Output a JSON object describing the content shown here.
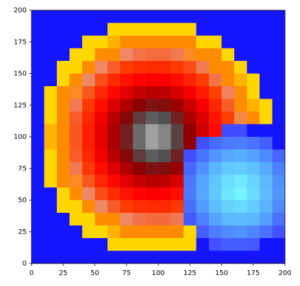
{
  "chart_data": {
    "type": "heatmap",
    "xlim": [
      0,
      200
    ],
    "ylim": [
      0,
      200
    ],
    "xticks": [
      0,
      25,
      50,
      75,
      100,
      125,
      150,
      175,
      200
    ],
    "yticks": [
      0,
      25,
      50,
      75,
      100,
      125,
      150,
      175,
      200
    ],
    "colormap": [
      [
        -100,
        "#78ffff"
      ],
      [
        -50,
        "#58b0ff"
      ],
      [
        -10,
        "#4048ff"
      ],
      [
        -1,
        "#3a3aff"
      ],
      [
        0,
        "#1414ff"
      ],
      [
        0.5,
        "#ffd700"
      ],
      [
        10,
        "#ffd700"
      ],
      [
        12,
        "#ff8c00"
      ],
      [
        22,
        "#ff8c00"
      ],
      [
        25,
        "#ee8866"
      ],
      [
        35,
        "#ff4000"
      ],
      [
        50,
        "#ff0000"
      ],
      [
        70,
        "#8b0000"
      ],
      [
        82,
        "#505050"
      ],
      [
        100,
        "#c8c8c8"
      ]
    ],
    "z": [
      [
        0,
        0,
        0,
        0,
        0,
        0,
        0,
        0,
        0,
        0,
        0,
        0,
        0,
        0,
        0,
        0,
        0,
        0,
        0,
        0
      ],
      [
        0,
        0,
        0,
        0,
        0,
        0,
        1,
        5,
        7,
        8,
        7,
        6,
        3,
        0,
        0,
        0,
        0,
        0,
        0,
        0
      ],
      [
        0,
        0,
        0,
        0,
        1,
        7,
        11,
        15,
        17,
        18,
        18,
        16,
        13,
        9,
        3,
        0,
        0,
        0,
        0,
        0
      ],
      [
        0,
        0,
        0,
        2,
        10,
        16,
        21,
        25,
        28,
        29,
        29,
        27,
        23,
        18,
        12,
        5,
        0,
        0,
        0,
        0
      ],
      [
        0,
        0,
        2,
        10,
        18,
        25,
        31,
        36,
        39,
        40,
        40,
        37,
        33,
        27,
        21,
        13,
        5,
        0,
        0,
        0
      ],
      [
        0,
        0,
        8,
        17,
        25,
        33,
        40,
        46,
        49,
        51,
        50,
        47,
        42,
        36,
        28,
        20,
        11,
        2,
        0,
        0
      ],
      [
        0,
        3,
        13,
        23,
        32,
        41,
        48,
        55,
        60,
        62,
        61,
        57,
        51,
        44,
        35,
        26,
        17,
        7,
        0,
        0
      ],
      [
        0,
        7,
        17,
        27,
        37,
        47,
        56,
        64,
        70,
        73,
        72,
        67,
        59,
        51,
        41,
        31,
        21,
        11,
        1,
        0
      ],
      [
        0,
        9,
        20,
        31,
        41,
        52,
        62,
        71,
        79,
        84,
        82,
        75,
        65,
        56,
        45,
        35,
        24,
        14,
        3,
        0
      ],
      [
        0,
        11,
        22,
        32,
        43,
        54,
        65,
        75,
        86,
        94,
        90,
        80,
        69,
        58,
        48,
        -11,
        -12,
        0,
        0,
        0
      ],
      [
        0,
        11,
        22,
        32,
        43,
        54,
        65,
        75,
        86,
        94,
        90,
        80,
        69,
        -13,
        -23,
        -29,
        -30,
        -27,
        -19,
        0
      ],
      [
        0,
        9,
        20,
        31,
        41,
        52,
        62,
        71,
        79,
        84,
        82,
        75,
        -13,
        -27,
        -39,
        -47,
        -49,
        -45,
        -35,
        -21
      ],
      [
        0,
        7,
        17,
        27,
        37,
        47,
        56,
        64,
        70,
        73,
        72,
        67,
        -22,
        -38,
        -53,
        -65,
        -68,
        -61,
        -48,
        -32
      ],
      [
        0,
        3,
        13,
        23,
        32,
        41,
        48,
        55,
        60,
        62,
        61,
        57,
        -28,
        -46,
        -64,
        -80,
        -86,
        -74,
        -57,
        -38
      ],
      [
        0,
        0,
        8,
        17,
        25,
        33,
        40,
        46,
        49,
        51,
        50,
        47,
        -29,
        -47,
        -66,
        -84,
        -93,
        -77,
        -58,
        -40
      ],
      [
        0,
        0,
        2,
        10,
        18,
        25,
        31,
        36,
        39,
        40,
        40,
        37,
        -25,
        -42,
        -58,
        -71,
        -75,
        -67,
        -52,
        -35
      ],
      [
        0,
        0,
        0,
        2,
        10,
        16,
        21,
        25,
        28,
        29,
        29,
        27,
        -17,
        -32,
        -45,
        -56,
        -57,
        -55,
        -44,
        -26
      ],
      [
        0,
        0,
        0,
        0,
        1,
        7,
        11,
        15,
        17,
        18,
        18,
        16,
        5,
        -19,
        -30,
        -36,
        -38,
        -34,
        -26,
        -14
      ],
      [
        0,
        0,
        0,
        0,
        0,
        0,
        1,
        5,
        7,
        8,
        7,
        6,
        3,
        0,
        -13,
        -18,
        -19,
        -16,
        0,
        0
      ],
      [
        0,
        0,
        0,
        0,
        0,
        0,
        0,
        0,
        0,
        0,
        0,
        0,
        0,
        0,
        0,
        0,
        0,
        0,
        0,
        0
      ]
    ]
  }
}
